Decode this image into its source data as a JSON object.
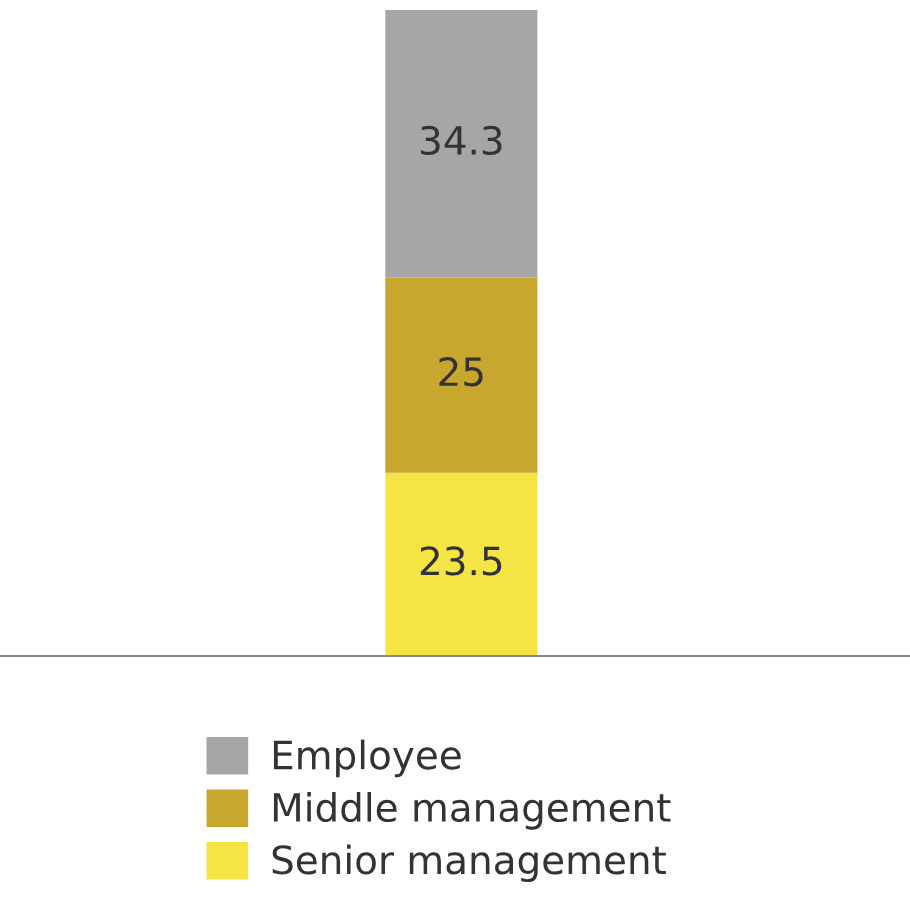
{
  "chart_data": {
    "type": "bar",
    "stacked": true,
    "categories": [
      null
    ],
    "data_labels": true,
    "legend": "bottom",
    "grid": false,
    "series": [
      {
        "name": "Senior management",
        "color": "#f4e444",
        "values": [
          23.5
        ]
      },
      {
        "name": "Middle management",
        "color": "#c8a72e",
        "values": [
          25
        ]
      },
      {
        "name": "Employee",
        "color": "#a6a6a8",
        "values": [
          34.3
        ]
      }
    ]
  }
}
